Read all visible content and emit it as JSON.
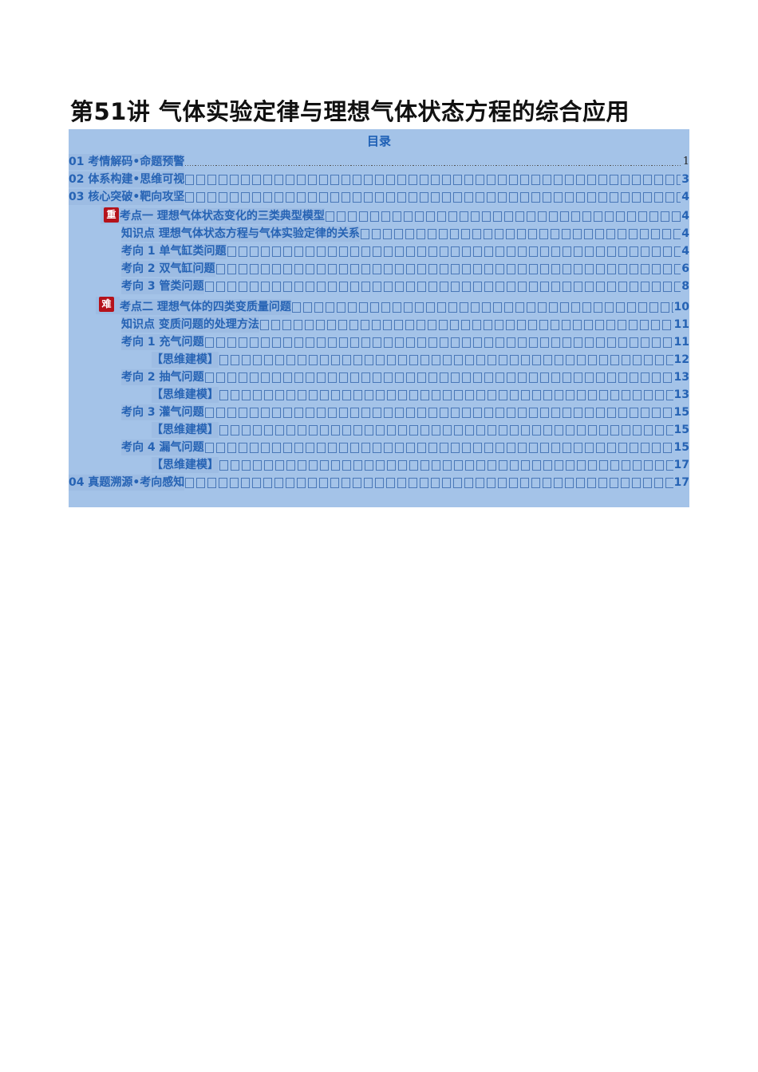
{
  "title": "第51讲 气体实验定律与理想气体状态方程的综合应用",
  "toc": {
    "heading": "目录",
    "badges": {
      "key": "重",
      "hard": "难"
    },
    "rows": [
      {
        "label": "01 考情解码•命题预警",
        "page": "1"
      },
      {
        "label": "02 体系构建•思维可视",
        "page": "3"
      },
      {
        "label": "03 核心突破•靶向攻坚",
        "page": "4"
      },
      {
        "label": "考点一  理想气体状态变化的三类典型模型 ",
        "page": "4"
      },
      {
        "label": "知识点  理想气体状态方程与气体实验定律的关系",
        "page": "4"
      },
      {
        "label": "考向 1 单气缸类问题",
        "page": "4"
      },
      {
        "label": "考向 2 双气缸问题",
        "page": "6"
      },
      {
        "label": "考向 3 管类问题",
        "page": "8"
      },
      {
        "label": "考点二  理想气体的四类变质量问题 ",
        "page": "10"
      },
      {
        "label": "知识点 变质问题的处理方法",
        "page": "11"
      },
      {
        "label": "考向 1 充气问题",
        "page": "11"
      },
      {
        "label": "【思维建模】",
        "page": "12"
      },
      {
        "label": "考向 2 抽气问题",
        "page": "13"
      },
      {
        "label": "【思维建模】",
        "page": "13"
      },
      {
        "label": "考向 3 灌气问题",
        "page": "15"
      },
      {
        "label": "【思维建模】",
        "page": "15"
      },
      {
        "label": "考向 4 漏气问题",
        "page": "15"
      },
      {
        "label": "【思维建模】",
        "page": "17"
      },
      {
        "label": "04 真题溯源•考向感知",
        "page": "17"
      }
    ]
  }
}
